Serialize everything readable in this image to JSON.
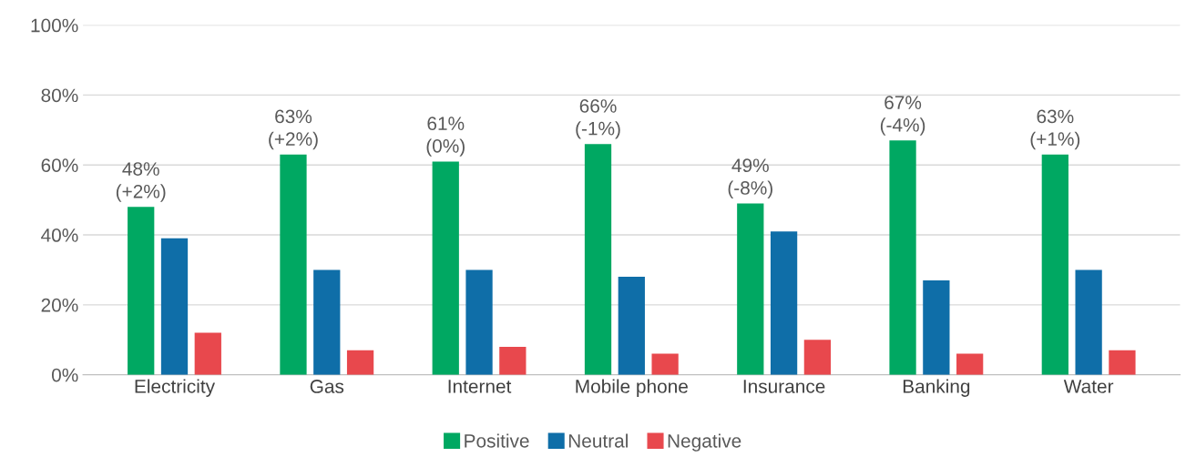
{
  "chart_data": {
    "type": "bar",
    "categories": [
      "Electricity",
      "Gas",
      "Internet",
      "Mobile phone",
      "Insurance",
      "Banking",
      "Water"
    ],
    "series": [
      {
        "name": "Positive",
        "color": "#00a862",
        "values": [
          48,
          63,
          61,
          66,
          49,
          67,
          63
        ],
        "value_labels": [
          "48%\n(+2%)",
          "63%\n(+2%)",
          "61%\n(0%)",
          "66%\n(-1%)",
          "49%\n(-8%)",
          "67%\n(-4%)",
          "63%\n(+1%)"
        ]
      },
      {
        "name": "Neutral",
        "color": "#0f6ea8",
        "values": [
          39,
          30,
          30,
          28,
          41,
          27,
          30
        ]
      },
      {
        "name": "Negative",
        "color": "#e8484d",
        "values": [
          12,
          7,
          8,
          6,
          10,
          6,
          7
        ]
      }
    ],
    "ylim": [
      0,
      100
    ],
    "yticks": [
      {
        "value": 0,
        "label": "0%"
      },
      {
        "value": 20,
        "label": "20%"
      },
      {
        "value": 40,
        "label": "40%"
      },
      {
        "value": 60,
        "label": "60%"
      },
      {
        "value": 80,
        "label": "80%"
      },
      {
        "value": 100,
        "label": "100%"
      }
    ],
    "grid": "y",
    "legend": "bottom"
  }
}
